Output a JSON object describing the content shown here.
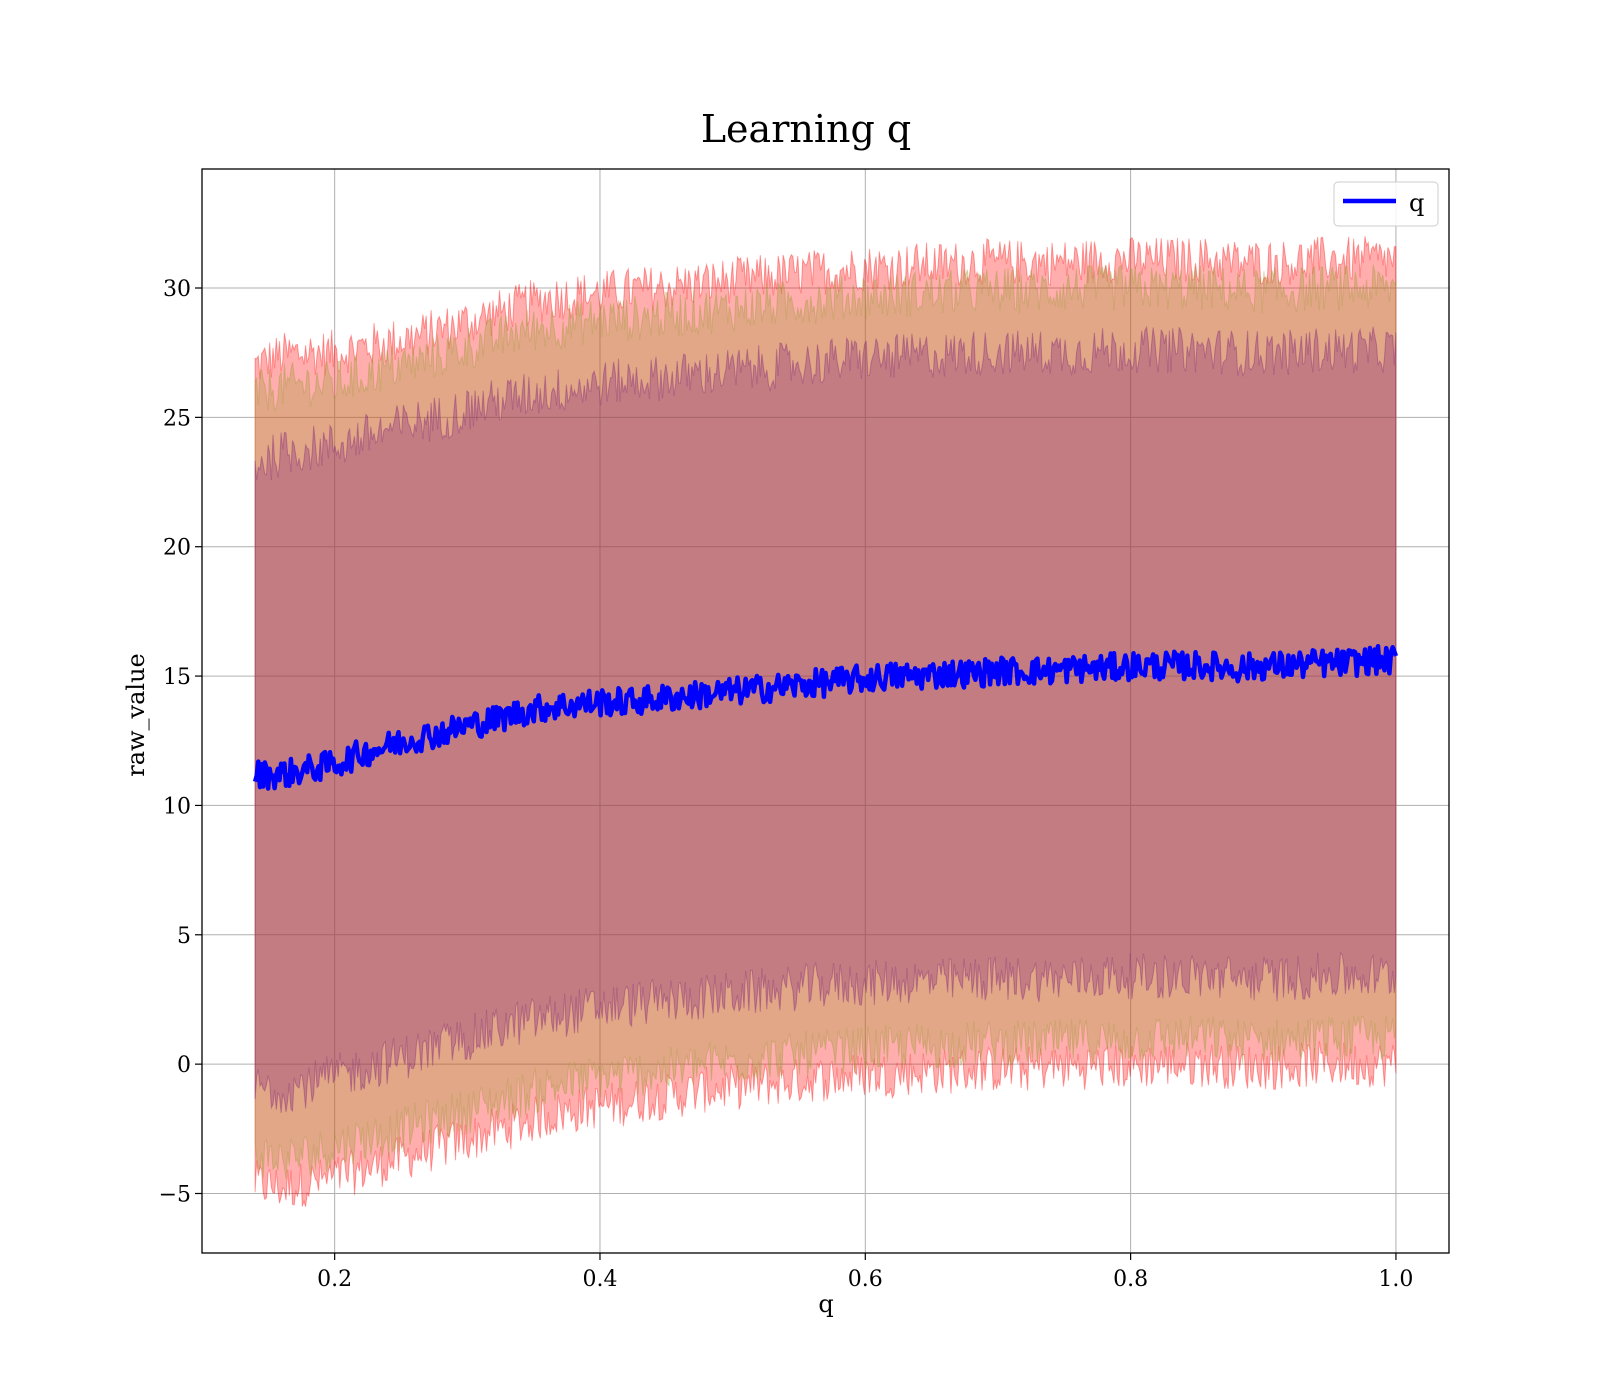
{
  "chart_data": {
    "type": "line",
    "title": "Learning q",
    "xlabel": "q",
    "ylabel": "raw_value",
    "xlim": [
      0.1,
      1.04
    ],
    "ylim": [
      -7.3,
      34.6
    ],
    "grid": true,
    "legend_position": "top-right",
    "x_ticks": [
      {
        "value": 0.2,
        "label": "0.2"
      },
      {
        "value": 0.4,
        "label": "0.4"
      },
      {
        "value": 0.6,
        "label": "0.6"
      },
      {
        "value": 0.8,
        "label": "0.8"
      },
      {
        "value": 1.0,
        "label": "1.0"
      }
    ],
    "y_ticks": [
      {
        "value": -5,
        "label": "−5"
      },
      {
        "value": 0,
        "label": "0"
      },
      {
        "value": 5,
        "label": "5"
      },
      {
        "value": 10,
        "label": "10"
      },
      {
        "value": 15,
        "label": "15"
      },
      {
        "value": 20,
        "label": "20"
      },
      {
        "value": 25,
        "label": "25"
      },
      {
        "value": 30,
        "label": "30"
      }
    ],
    "series": [
      {
        "name": "q",
        "color": "#0000ff",
        "x": [
          0.14,
          0.16,
          0.18,
          0.2,
          0.22,
          0.24,
          0.26,
          0.28,
          0.3,
          0.32,
          0.34,
          0.36,
          0.38,
          0.4,
          0.42,
          0.44,
          0.46,
          0.48,
          0.5,
          0.52,
          0.54,
          0.56,
          0.58,
          0.6,
          0.62,
          0.64,
          0.66,
          0.68,
          0.7,
          0.72,
          0.74,
          0.76,
          0.78,
          0.8,
          0.82,
          0.84,
          0.86,
          0.88,
          0.9,
          0.92,
          0.94,
          0.96,
          0.98,
          1.0
        ],
        "y": [
          11.2,
          11.2,
          11.4,
          11.6,
          12.0,
          12.3,
          12.6,
          12.8,
          13.1,
          13.3,
          13.6,
          13.8,
          13.9,
          14.0,
          14.0,
          14.1,
          14.2,
          14.3,
          14.4,
          14.5,
          14.6,
          14.7,
          14.8,
          14.9,
          15.0,
          15.0,
          15.1,
          15.1,
          15.2,
          15.2,
          15.2,
          15.3,
          15.3,
          15.4,
          15.4,
          15.4,
          15.4,
          15.3,
          15.4,
          15.4,
          15.5,
          15.5,
          15.6,
          15.6
        ],
        "noise": 0.55
      }
    ],
    "bands": [
      {
        "name": "outer",
        "color": "#ff0000",
        "opacity": 0.32,
        "upper": [
          27.0,
          27.4,
          27.5,
          27.5,
          27.7,
          27.9,
          28.1,
          28.4,
          28.7,
          29.0,
          29.3,
          29.6,
          29.7,
          29.8,
          29.9,
          30.0,
          30.1,
          30.2,
          30.3,
          30.4,
          30.5,
          30.6,
          30.7,
          30.8,
          30.8,
          30.9,
          30.9,
          31.0,
          31.0,
          31.0,
          31.0,
          31.0,
          31.1,
          31.1,
          31.1,
          31.1,
          31.1,
          31.0,
          31.0,
          31.0,
          31.1,
          31.1,
          31.1,
          31.1
        ],
        "lower": [
          -4.6,
          -4.8,
          -4.6,
          -4.4,
          -4.1,
          -3.8,
          -3.5,
          -3.2,
          -2.9,
          -2.6,
          -2.3,
          -2.0,
          -1.8,
          -1.6,
          -1.5,
          -1.3,
          -1.2,
          -1.0,
          -0.9,
          -0.8,
          -0.7,
          -0.6,
          -0.5,
          -0.4,
          -0.4,
          -0.3,
          -0.3,
          -0.2,
          -0.2,
          -0.2,
          -0.1,
          -0.1,
          -0.1,
          -0.1,
          0.0,
          0.0,
          0.0,
          -0.1,
          -0.1,
          -0.1,
          0.0,
          0.0,
          0.0,
          0.0
        ]
      },
      {
        "name": "middle",
        "color": "#9a9a30",
        "opacity": 0.3,
        "upper": [
          25.9,
          26.2,
          26.3,
          26.3,
          26.6,
          26.9,
          27.1,
          27.4,
          27.7,
          28.0,
          28.3,
          28.5,
          28.6,
          28.8,
          28.8,
          28.9,
          29.0,
          29.1,
          29.2,
          29.3,
          29.4,
          29.5,
          29.6,
          29.7,
          29.7,
          29.8,
          29.8,
          29.9,
          29.9,
          29.9,
          29.9,
          30.0,
          30.0,
          30.0,
          30.0,
          30.0,
          30.0,
          29.9,
          29.9,
          29.9,
          30.0,
          30.0,
          30.0,
          30.0
        ],
        "lower": [
          -3.5,
          -3.7,
          -3.5,
          -3.2,
          -2.9,
          -2.7,
          -2.4,
          -2.1,
          -1.8,
          -1.5,
          -1.2,
          -0.9,
          -0.7,
          -0.5,
          -0.4,
          -0.3,
          -0.2,
          0.0,
          0.1,
          0.2,
          0.3,
          0.4,
          0.5,
          0.6,
          0.6,
          0.7,
          0.7,
          0.8,
          0.8,
          0.8,
          0.8,
          0.9,
          0.9,
          0.9,
          1.0,
          1.0,
          1.0,
          0.9,
          0.9,
          0.9,
          1.0,
          1.0,
          1.0,
          1.0
        ]
      },
      {
        "name": "inner",
        "color": "#7a1a7a",
        "opacity": 0.3,
        "upper": [
          23.2,
          23.6,
          23.8,
          23.9,
          24.2,
          24.5,
          24.8,
          25.0,
          25.3,
          25.6,
          25.8,
          26.0,
          26.1,
          26.3,
          26.4,
          26.5,
          26.6,
          26.7,
          26.8,
          26.9,
          27.0,
          27.1,
          27.2,
          27.3,
          27.3,
          27.4,
          27.4,
          27.5,
          27.5,
          27.5,
          27.5,
          27.5,
          27.6,
          27.6,
          27.6,
          27.6,
          27.6,
          27.5,
          27.5,
          27.5,
          27.6,
          27.6,
          27.6,
          27.6
        ],
        "lower": [
          -0.9,
          -1.0,
          -0.8,
          -0.5,
          -0.2,
          0.1,
          0.4,
          0.7,
          1.0,
          1.3,
          1.6,
          1.8,
          2.0,
          2.2,
          2.3,
          2.4,
          2.5,
          2.6,
          2.7,
          2.8,
          2.9,
          3.0,
          3.1,
          3.1,
          3.2,
          3.2,
          3.2,
          3.3,
          3.3,
          3.3,
          3.3,
          3.3,
          3.4,
          3.4,
          3.4,
          3.4,
          3.4,
          3.3,
          3.3,
          3.3,
          3.4,
          3.4,
          3.4,
          3.4
        ]
      }
    ],
    "band_noise": 0.9
  }
}
